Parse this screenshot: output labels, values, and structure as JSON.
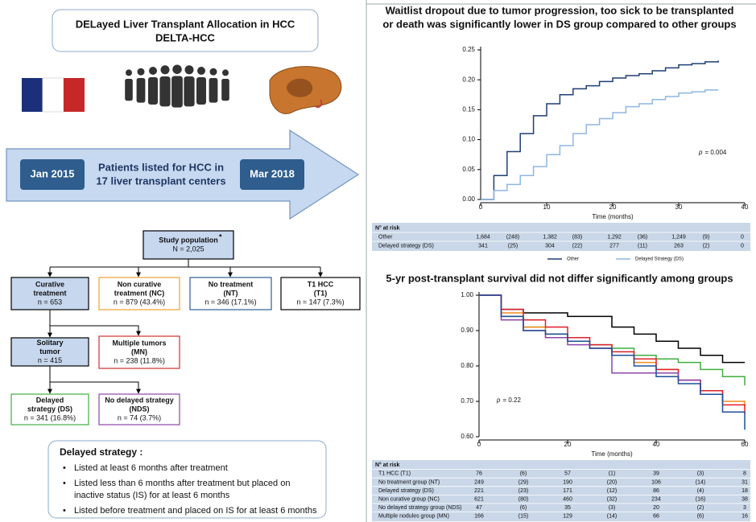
{
  "header": {
    "lines": [
      "DELayed Liver Transplant Allocation in HCC",
      "DELTA-HCC"
    ]
  },
  "timeline": {
    "start": "Jan 2015",
    "lines": [
      "Patients listed for HCC in",
      "17 liver transplant centers"
    ],
    "end": "Mar 2018"
  },
  "flowchart": {
    "study": {
      "lines": [
        "Study population",
        "N = 2,025"
      ],
      "mark": "*"
    },
    "curative": {
      "lines": [
        "Curative",
        "treatment",
        "n = 653"
      ]
    },
    "nc": {
      "lines": [
        "Non curative",
        "treatment (NC)",
        "n = 879 (43.4%)"
      ]
    },
    "nt": {
      "lines": [
        "No treatment",
        "(NT)",
        "n = 346 (17.1%)"
      ]
    },
    "t1": {
      "lines": [
        "T1 HCC",
        "(T1)",
        "n = 147 (7.3%)"
      ]
    },
    "solitary": {
      "lines": [
        "Solitary",
        "tumor",
        "n = 415"
      ]
    },
    "mn": {
      "lines": [
        "Multiple tumors",
        "(MN)",
        "n = 238 (11.8%)"
      ]
    },
    "ds": {
      "lines": [
        "Delayed",
        "strategy (DS)",
        "n = 341 (16.8%)"
      ]
    },
    "nds": {
      "lines": [
        "No delayed strategy",
        "(NDS)",
        "n = 74 (3.7%)"
      ]
    }
  },
  "strategy": {
    "title": "Delayed strategy :",
    "items": [
      [
        "Listed at least 6 months after treatment"
      ],
      [
        "Listed less than 6 months after treatment but placed on",
        "inactive status (IS) for at least 6 months"
      ],
      [
        "Listed before treatment and placed on IS for at least 6 months"
      ]
    ]
  },
  "chart_data": [
    {
      "type": "line",
      "title": [
        "Waitlist dropout due to tumor progression, too sick to be transplanted",
        "or death was significantly lower in DS group compared to other groups"
      ],
      "x_label": "Time (months)",
      "x": [
        0,
        2,
        4,
        6,
        8,
        10,
        12,
        14,
        16,
        18,
        20,
        22,
        24,
        26,
        28,
        30,
        32,
        34,
        36
      ],
      "series": [
        {
          "name": "Other",
          "color": "#1f3f75",
          "values": [
            0,
            0.04,
            0.08,
            0.11,
            0.14,
            0.16,
            0.175,
            0.185,
            0.19,
            0.197,
            0.203,
            0.207,
            0.21,
            0.215,
            0.22,
            0.225,
            0.227,
            0.23,
            0.232
          ]
        },
        {
          "name": "Delayed Strategy (DS)",
          "color": "#8fb6e0",
          "values": [
            0,
            0.015,
            0.025,
            0.04,
            0.055,
            0.075,
            0.09,
            0.11,
            0.125,
            0.135,
            0.145,
            0.155,
            0.16,
            0.167,
            0.172,
            0.178,
            0.18,
            0.183,
            0.183
          ]
        }
      ],
      "xlim": [
        0,
        40
      ],
      "xticks": [
        0,
        10,
        20,
        30,
        40
      ],
      "ylim": [
        0,
        0.25
      ],
      "yticks": [
        {
          "value": 0,
          "label": "0.00"
        },
        0.05,
        {
          "value": 0.1,
          "label": "0.10"
        },
        0.15,
        {
          "value": 0.2,
          "label": "0.20"
        },
        0.25
      ],
      "annotation": {
        "symbol": "p",
        "text": "= 0.004"
      },
      "risk_table": {
        "title": "N° at risk",
        "rows": [
          {
            "label": "Other",
            "cells": [
              "1,684",
              "(248)",
              "1,382",
              "(83)",
              "1,292",
              "(36)",
              "1,249",
              "(9)",
              "0"
            ]
          },
          {
            "label": "Delayed strategy (DS)",
            "cells": [
              "341",
              "(25)",
              "304",
              "(22)",
              "277",
              "(11)",
              "263",
              "(2)",
              "0"
            ]
          }
        ]
      }
    },
    {
      "type": "line",
      "title": [
        "5-yr post-transplant survival did not differ significantly among groups"
      ],
      "x_label": "Time (months)",
      "x": [
        0,
        5,
        10,
        15,
        20,
        25,
        30,
        35,
        40,
        45,
        50,
        55,
        60
      ],
      "series": [
        {
          "color": "#000000",
          "values": [
            1.0,
            0.96,
            0.95,
            0.95,
            0.94,
            0.94,
            0.91,
            0.89,
            0.87,
            0.85,
            0.83,
            0.81,
            0.81
          ]
        },
        {
          "color": "#3fae3f",
          "values": [
            1.0,
            0.94,
            0.91,
            0.89,
            0.87,
            0.86,
            0.85,
            0.83,
            0.82,
            0.81,
            0.79,
            0.77,
            0.745
          ]
        },
        {
          "color": "#f28c1a",
          "values": [
            1.0,
            0.95,
            0.91,
            0.88,
            0.87,
            0.85,
            0.83,
            0.81,
            0.79,
            0.76,
            0.73,
            0.7,
            0.685
          ]
        },
        {
          "color": "#e0202a",
          "values": [
            1.0,
            0.96,
            0.93,
            0.91,
            0.88,
            0.86,
            0.84,
            0.82,
            0.79,
            0.76,
            0.73,
            0.69,
            0.665
          ]
        },
        {
          "color": "#8e44ad",
          "values": [
            1.0,
            0.93,
            0.9,
            0.88,
            0.86,
            0.85,
            0.78,
            0.78,
            0.78,
            0.76,
            0.72,
            0.7,
            null
          ]
        },
        {
          "color": "#1f4e9a",
          "values": [
            1.0,
            0.94,
            0.9,
            0.89,
            0.87,
            0.85,
            0.83,
            0.8,
            0.77,
            0.75,
            0.72,
            0.67,
            0.62
          ]
        }
      ],
      "xlim": [
        0,
        60
      ],
      "xticks": [
        0,
        20,
        40,
        60
      ],
      "ylim": [
        0.6,
        1.0
      ],
      "yticks": [
        {
          "value": 0.6,
          "label": "0.60"
        },
        {
          "value": 0.7,
          "label": "0.70"
        },
        {
          "value": 0.8,
          "label": "0.80"
        },
        {
          "value": 0.9,
          "label": "0.90"
        },
        {
          "value": 1.0,
          "label": "1.00"
        }
      ],
      "annotation": {
        "symbol": "p",
        "text": "= 0.22"
      },
      "risk_table": {
        "title": "N° at risk",
        "rows": [
          {
            "label": "T1 HCC (T1)",
            "cells": [
              "76",
              "(6)",
              "57",
              "(1)",
              "39",
              "(3)",
              "8"
            ]
          },
          {
            "label": "No treatment group (NT)",
            "cells": [
              "249",
              "(29)",
              "190",
              "(20)",
              "106",
              "(14)",
              "31"
            ]
          },
          {
            "label": "Delayed strategy (DS)",
            "cells": [
              "221",
              "(23)",
              "171",
              "(12)",
              "86",
              "(4)",
              "18"
            ]
          },
          {
            "label": "Non curative group (NC)",
            "cells": [
              "621",
              "(80)",
              "460",
              "(32)",
              "234",
              "(16)",
              "38"
            ]
          },
          {
            "label": "No delayed strategy group (NDS)",
            "cells": [
              "47",
              "(6)",
              "35",
              "(3)",
              "20",
              "(2)",
              "3"
            ]
          },
          {
            "label": "Multiple nodules group (MN)",
            "cells": [
              "166",
              "(15)",
              "129",
              "(14)",
              "66",
              "(6)",
              "16"
            ]
          }
        ]
      }
    }
  ]
}
